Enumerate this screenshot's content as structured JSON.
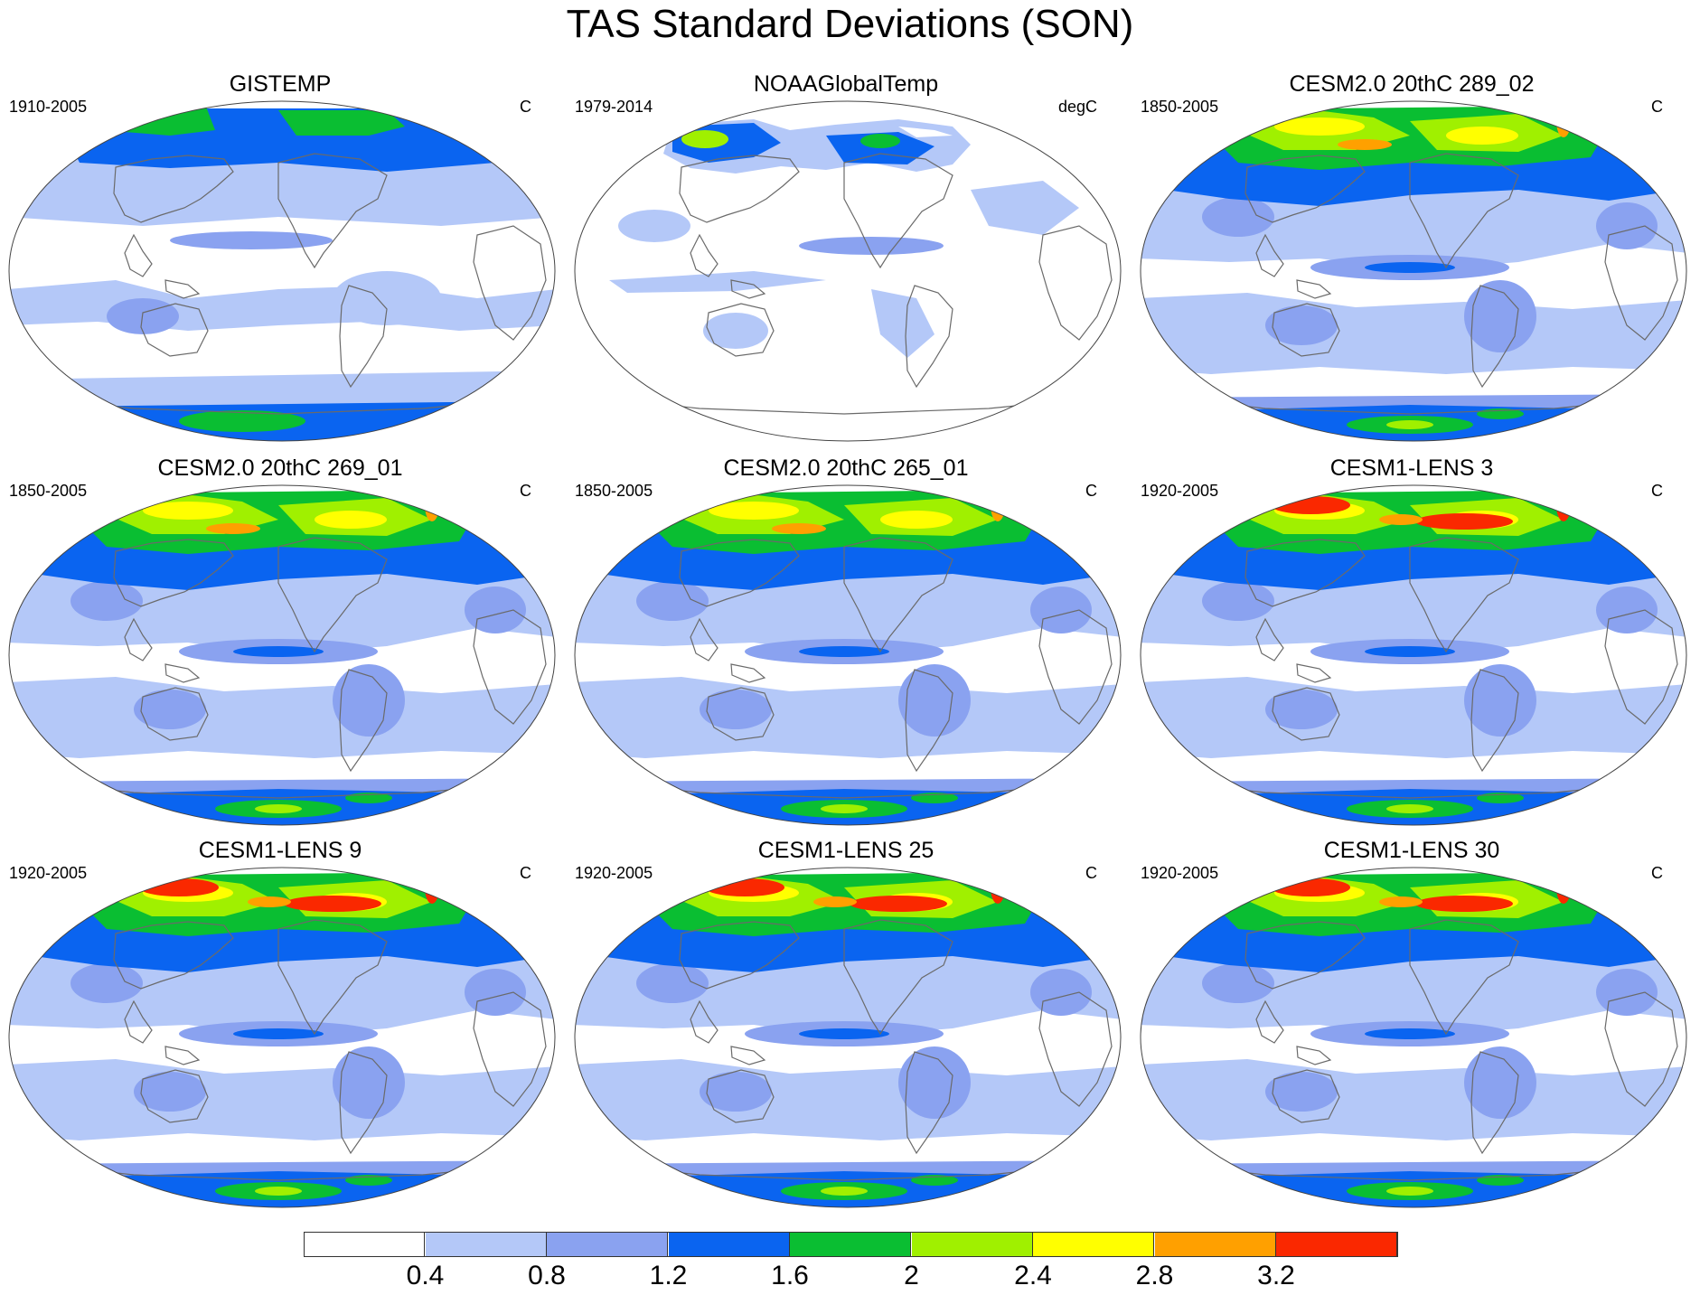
{
  "title": "TAS Standard Deviations (SON)",
  "panels": [
    {
      "title": "GISTEMP",
      "period": "1910-2005",
      "units": "C",
      "style": "gis"
    },
    {
      "title": "NOAAGlobalTemp",
      "period": "1979-2014",
      "units": "degC",
      "style": "noaa"
    },
    {
      "title": "CESM2.0 20thC 289_02",
      "period": "1850-2005",
      "units": "C",
      "style": "cesm2"
    },
    {
      "title": "CESM2.0 20thC 269_01",
      "period": "1850-2005",
      "units": "C",
      "style": "cesm2"
    },
    {
      "title": "CESM2.0 20thC 265_01",
      "period": "1850-2005",
      "units": "C",
      "style": "cesm2"
    },
    {
      "title": "CESM1-LENS 3",
      "period": "1920-2005",
      "units": "C",
      "style": "lens"
    },
    {
      "title": "CESM1-LENS 9",
      "period": "1920-2005",
      "units": "C",
      "style": "lens"
    },
    {
      "title": "CESM1-LENS 25",
      "period": "1920-2005",
      "units": "C",
      "style": "lens"
    },
    {
      "title": "CESM1-LENS 30",
      "period": "1920-2005",
      "units": "C",
      "style": "lens"
    }
  ],
  "colorbar": {
    "colors": [
      "#ffffff",
      "#b4c8f8",
      "#8aa2f0",
      "#0a64f0",
      "#0abe32",
      "#a0f000",
      "#ffff00",
      "#ffa000",
      "#fa2800"
    ],
    "labels": [
      "0.4",
      "0.8",
      "1.2",
      "1.6",
      "2",
      "2.4",
      "2.8",
      "3.2"
    ]
  },
  "chart_data": {
    "type": "heatmap",
    "title": "TAS Standard Deviations (SON)",
    "variable": "TAS",
    "season": "SON",
    "contour_levels": [
      0.4,
      0.8,
      1.2,
      1.6,
      2.0,
      2.4,
      2.8,
      3.2
    ],
    "panels": [
      "GISTEMP",
      "NOAAGlobalTemp",
      "CESM2.0 20thC 289_02",
      "CESM2.0 20thC 269_01",
      "CESM2.0 20thC 265_01",
      "CESM1-LENS 3",
      "CESM1-LENS 9",
      "CESM1-LENS 25",
      "CESM1-LENS 30"
    ]
  }
}
